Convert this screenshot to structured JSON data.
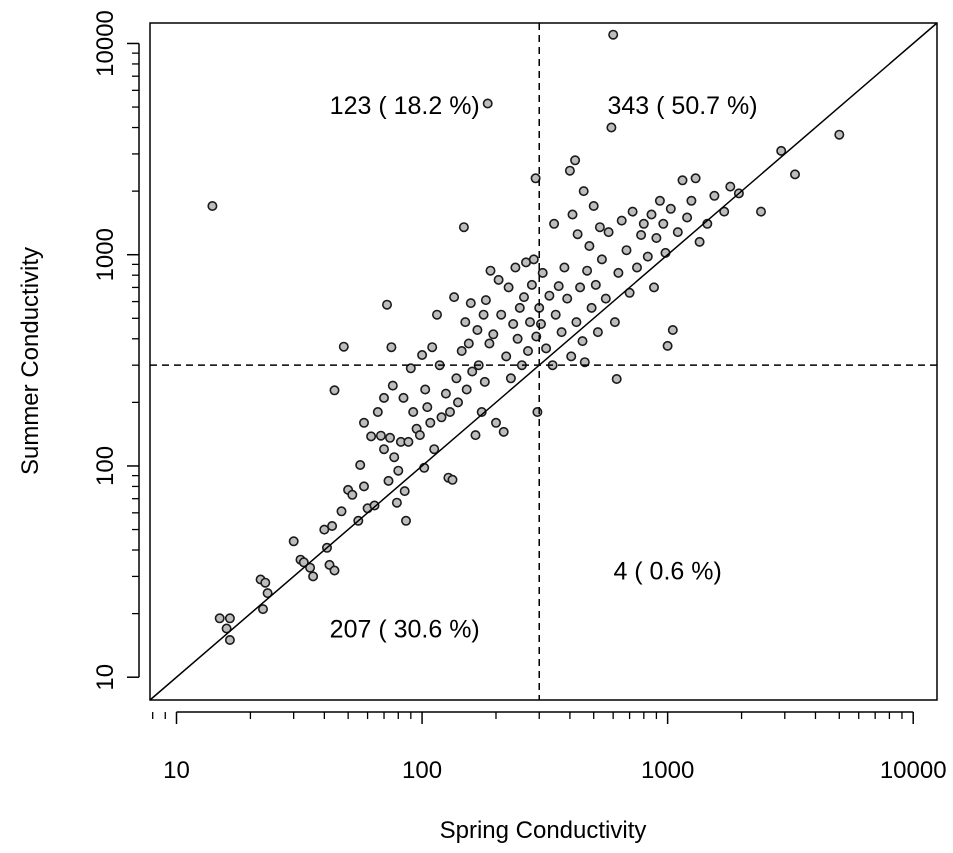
{
  "chart_data": {
    "type": "scatter",
    "title": "",
    "xlabel": "Spring Conductivity",
    "ylabel": "Summer Conductivity",
    "x_scale": "log",
    "y_scale": "log",
    "xlim": [
      7.8,
      12500
    ],
    "ylim": [
      7.8,
      12500
    ],
    "x_ticks": [
      {
        "value": 10,
        "label": "10"
      },
      {
        "value": 100,
        "label": "100"
      },
      {
        "value": 1000,
        "label": "1000"
      },
      {
        "value": 10000,
        "label": "10000"
      }
    ],
    "y_ticks": [
      {
        "value": 10,
        "label": "10"
      },
      {
        "value": 100,
        "label": "100"
      },
      {
        "value": 1000,
        "label": "1000"
      },
      {
        "value": 10000,
        "label": "10000"
      }
    ],
    "threshold": 300,
    "reference_line": "y = x",
    "grid": false,
    "legend": "none",
    "colors": {
      "point_fill": "#bdbdbd",
      "point_stroke": "#1a1a1a",
      "lines": "#000000"
    },
    "quadrant_labels": {
      "top_left": {
        "text": "123 ( 18.2 %)",
        "x": 85,
        "y": 5100
      },
      "top_right": {
        "text": "343 ( 50.7 %)",
        "x": 1150,
        "y": 5100
      },
      "bottom_right": {
        "text": "4 ( 0.6 %)",
        "x": 1000,
        "y": 32
      },
      "bottom_left": {
        "text": "207 ( 30.6 %)",
        "x": 85,
        "y": 17
      }
    },
    "series": [
      {
        "points": [
          [
            14,
            1700
          ],
          [
            15,
            19
          ],
          [
            16,
            17
          ],
          [
            16.5,
            19
          ],
          [
            16.5,
            15
          ],
          [
            22,
            29
          ],
          [
            22.5,
            21
          ],
          [
            23,
            28
          ],
          [
            23.5,
            25
          ],
          [
            30,
            44
          ],
          [
            32,
            36
          ],
          [
            33,
            35
          ],
          [
            35,
            33
          ],
          [
            36,
            30
          ],
          [
            40,
            50
          ],
          [
            41,
            41
          ],
          [
            42,
            34
          ],
          [
            43,
            52
          ],
          [
            44,
            32
          ],
          [
            44,
            228
          ],
          [
            47,
            61
          ],
          [
            48,
            367
          ],
          [
            50,
            77
          ],
          [
            52,
            73
          ],
          [
            55,
            55
          ],
          [
            56,
            101
          ],
          [
            58,
            80
          ],
          [
            58,
            160
          ],
          [
            60,
            63
          ],
          [
            62,
            138
          ],
          [
            64,
            65
          ],
          [
            66,
            180
          ],
          [
            68,
            139
          ],
          [
            70,
            120
          ],
          [
            70,
            210
          ],
          [
            72,
            580
          ],
          [
            73,
            85
          ],
          [
            74,
            136
          ],
          [
            75,
            365
          ],
          [
            76,
            240
          ],
          [
            77,
            110
          ],
          [
            79,
            67
          ],
          [
            80,
            95
          ],
          [
            82,
            130
          ],
          [
            84,
            210
          ],
          [
            85,
            76
          ],
          [
            86,
            55
          ],
          [
            88,
            130
          ],
          [
            90,
            290
          ],
          [
            92,
            180
          ],
          [
            95,
            150
          ],
          [
            98,
            140
          ],
          [
            100,
            335
          ],
          [
            102,
            98
          ],
          [
            103,
            230
          ],
          [
            105,
            190
          ],
          [
            108,
            160
          ],
          [
            110,
            365
          ],
          [
            112,
            120
          ],
          [
            115,
            520
          ],
          [
            118,
            300
          ],
          [
            120,
            170
          ],
          [
            125,
            220
          ],
          [
            128,
            88
          ],
          [
            130,
            180
          ],
          [
            133,
            86
          ],
          [
            135,
            630
          ],
          [
            138,
            260
          ],
          [
            140,
            200
          ],
          [
            145,
            350
          ],
          [
            148,
            1350
          ],
          [
            150,
            480
          ],
          [
            152,
            230
          ],
          [
            155,
            380
          ],
          [
            158,
            590
          ],
          [
            160,
            280
          ],
          [
            165,
            140
          ],
          [
            168,
            440
          ],
          [
            170,
            300
          ],
          [
            175,
            180
          ],
          [
            178,
            520
          ],
          [
            180,
            250
          ],
          [
            182,
            610
          ],
          [
            185,
            5200
          ],
          [
            188,
            380
          ],
          [
            190,
            840
          ],
          [
            195,
            420
          ],
          [
            200,
            160
          ],
          [
            205,
            760
          ],
          [
            210,
            520
          ],
          [
            215,
            145
          ],
          [
            220,
            330
          ],
          [
            225,
            700
          ],
          [
            230,
            260
          ],
          [
            235,
            470
          ],
          [
            240,
            870
          ],
          [
            245,
            400
          ],
          [
            250,
            560
          ],
          [
            255,
            300
          ],
          [
            260,
            630
          ],
          [
            265,
            920
          ],
          [
            270,
            350
          ],
          [
            275,
            480
          ],
          [
            280,
            720
          ],
          [
            285,
            950
          ],
          [
            290,
            2300
          ],
          [
            292,
            410
          ],
          [
            295,
            180
          ],
          [
            300,
            560
          ],
          [
            305,
            470
          ],
          [
            310,
            820
          ],
          [
            320,
            360
          ],
          [
            330,
            640
          ],
          [
            340,
            300
          ],
          [
            345,
            1400
          ],
          [
            350,
            520
          ],
          [
            360,
            710
          ],
          [
            370,
            430
          ],
          [
            380,
            870
          ],
          [
            390,
            620
          ],
          [
            400,
            2500
          ],
          [
            405,
            330
          ],
          [
            410,
            1550
          ],
          [
            420,
            2800
          ],
          [
            425,
            480
          ],
          [
            430,
            1250
          ],
          [
            440,
            700
          ],
          [
            450,
            390
          ],
          [
            455,
            2000
          ],
          [
            460,
            310
          ],
          [
            470,
            840
          ],
          [
            480,
            1100
          ],
          [
            490,
            560
          ],
          [
            500,
            1700
          ],
          [
            510,
            720
          ],
          [
            520,
            430
          ],
          [
            530,
            1350
          ],
          [
            540,
            950
          ],
          [
            560,
            620
          ],
          [
            575,
            1280
          ],
          [
            590,
            4000
          ],
          [
            600,
            11000
          ],
          [
            610,
            480
          ],
          [
            620,
            258
          ],
          [
            630,
            820
          ],
          [
            650,
            1450
          ],
          [
            680,
            1050
          ],
          [
            700,
            660
          ],
          [
            720,
            1600
          ],
          [
            750,
            870
          ],
          [
            780,
            1240
          ],
          [
            800,
            1400
          ],
          [
            830,
            980
          ],
          [
            860,
            1550
          ],
          [
            880,
            700
          ],
          [
            900,
            1200
          ],
          [
            930,
            1800
          ],
          [
            960,
            1400
          ],
          [
            980,
            1020
          ],
          [
            1000,
            370
          ],
          [
            1030,
            1650
          ],
          [
            1050,
            440
          ],
          [
            1100,
            1280
          ],
          [
            1150,
            2250
          ],
          [
            1200,
            1500
          ],
          [
            1250,
            1800
          ],
          [
            1300,
            2300
          ],
          [
            1350,
            1150
          ],
          [
            1450,
            1400
          ],
          [
            1550,
            1900
          ],
          [
            1700,
            1600
          ],
          [
            1800,
            2100
          ],
          [
            1950,
            1950
          ],
          [
            2400,
            1600
          ],
          [
            2900,
            3100
          ],
          [
            3300,
            2400
          ],
          [
            5000,
            3700
          ]
        ]
      }
    ]
  }
}
